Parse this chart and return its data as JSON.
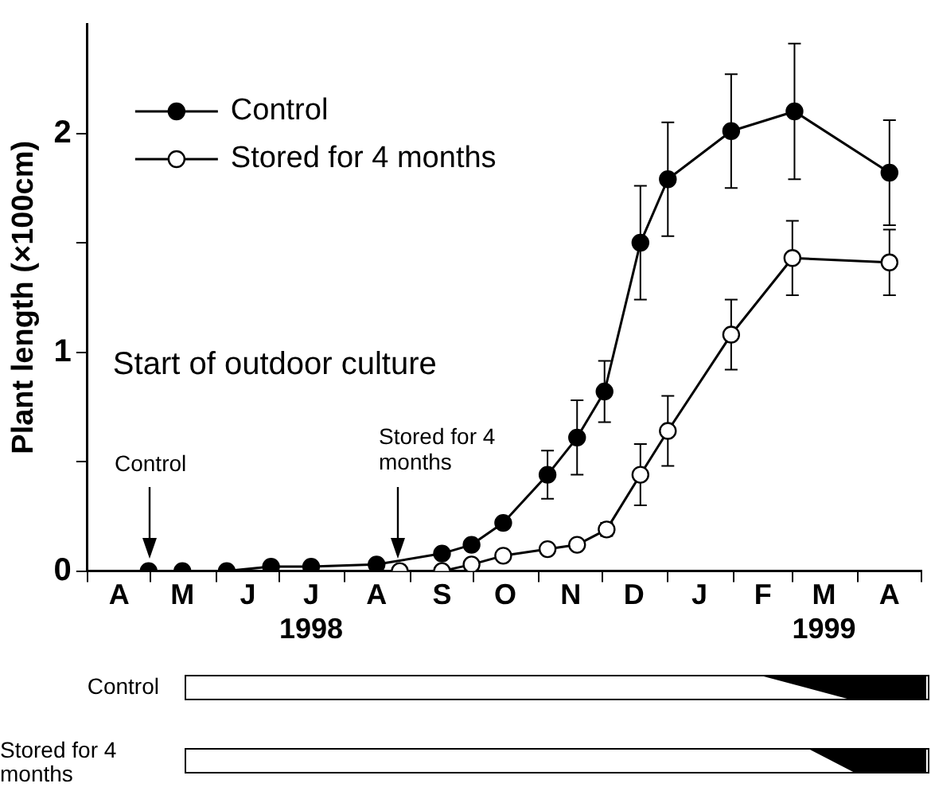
{
  "chart_data": {
    "type": "line",
    "ylabel": "Plant length (×100cm)",
    "xlim": [
      "1998-04-01",
      "1999-05-01"
    ],
    "ylim": [
      0,
      2.5
    ],
    "xticks": [
      {
        "value": "1998-04-01",
        "label": null
      },
      {
        "value": "1998-04-16",
        "label": "A"
      },
      {
        "value": "1998-05-01",
        "label": null
      },
      {
        "value": "1998-05-16",
        "label": "M"
      },
      {
        "value": "1998-06-01",
        "label": null
      },
      {
        "value": "1998-06-16",
        "label": "J"
      },
      {
        "value": "1998-07-01",
        "label": null
      },
      {
        "value": "1998-07-16",
        "label": "J\n1998"
      },
      {
        "value": "1998-08-01",
        "label": null
      },
      {
        "value": "1998-08-16",
        "label": "A"
      },
      {
        "value": "1998-09-01",
        "label": null
      },
      {
        "value": "1998-09-16",
        "label": "S"
      },
      {
        "value": "1998-10-01",
        "label": null
      },
      {
        "value": "1998-10-16",
        "label": "O"
      },
      {
        "value": "1998-11-01",
        "label": null
      },
      {
        "value": "1998-11-16",
        "label": "N"
      },
      {
        "value": "1998-12-01",
        "label": null
      },
      {
        "value": "1998-12-16",
        "label": "D"
      },
      {
        "value": "1999-01-01",
        "label": null
      },
      {
        "value": "1999-01-16",
        "label": "J"
      },
      {
        "value": "1999-02-01",
        "label": null
      },
      {
        "value": "1999-02-15",
        "label": "F"
      },
      {
        "value": "1999-03-01",
        "label": null
      },
      {
        "value": "1999-03-16",
        "label": "M\n1999"
      },
      {
        "value": "1999-04-01",
        "label": null
      },
      {
        "value": "1999-04-16",
        "label": "A"
      },
      {
        "value": "1999-05-01",
        "label": null
      }
    ],
    "yticks": [
      0,
      {
        "value": 0.5,
        "label": null
      },
      1,
      {
        "value": 1.5,
        "label": null
      },
      2
    ],
    "marker": "circle",
    "legend": "top left",
    "grid": false,
    "series": [
      {
        "name": "Control",
        "color": "#000000",
        "x": [
          "1998-04-30",
          "1998-05-16",
          "1998-06-06",
          "1998-06-27",
          "1998-07-16",
          "1998-08-16",
          "1998-09-16",
          "1998-09-30",
          "1998-10-15",
          "1998-11-05",
          "1998-11-19",
          "1998-12-02",
          "1998-12-19",
          "1999-01-01",
          "1999-01-31",
          "1999-03-02",
          "1999-04-16"
        ],
        "values": [
          0,
          0,
          0,
          0.02,
          0.02,
          0.03,
          0.08,
          0.12,
          0.22,
          0.44,
          0.61,
          0.82,
          1.5,
          1.79,
          2.01,
          2.1,
          1.82
        ],
        "errors": [
          null,
          null,
          null,
          null,
          null,
          null,
          null,
          null,
          null,
          0.11,
          0.17,
          0.14,
          0.26,
          0.26,
          0.26,
          0.31,
          0.24
        ]
      },
      {
        "name": "Stored for 4 months",
        "color": "#ffffff",
        "x": [
          "1998-08-27",
          "1998-09-16",
          "1998-09-30",
          "1998-10-15",
          "1998-11-05",
          "1998-11-19",
          "1998-12-03",
          "1998-12-19",
          "1999-01-01",
          "1999-01-31",
          "1999-03-01",
          "1999-04-16"
        ],
        "values": [
          0,
          0,
          0.03,
          0.07,
          0.1,
          0.12,
          0.19,
          0.44,
          0.64,
          1.08,
          1.43,
          1.41
        ],
        "errors": [
          null,
          null,
          null,
          null,
          null,
          null,
          0.03,
          0.14,
          0.16,
          0.16,
          0.17,
          0.15
        ]
      }
    ],
    "annotations": [
      "Start of outdoor culture",
      "Control",
      "Stored for 4 months",
      "Control",
      "Stored for 4 months"
    ]
  }
}
